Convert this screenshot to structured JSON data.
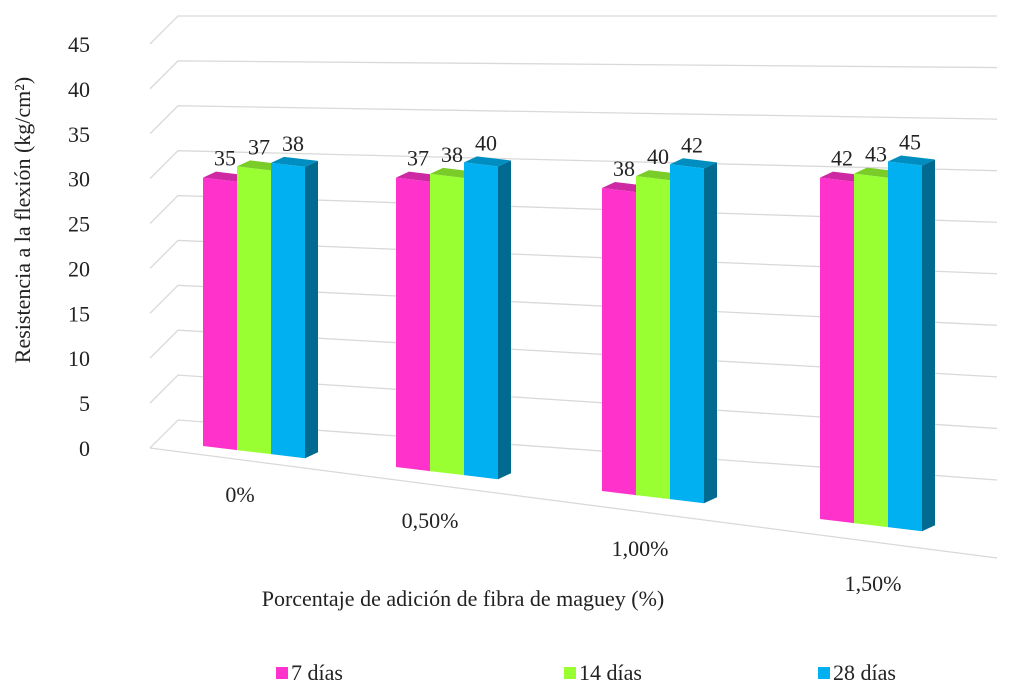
{
  "chart_data": {
    "type": "bar",
    "title": "",
    "xlabel": "Porcentaje de adición de fibra de maguey (%)",
    "ylabel": "Resistencia a la flexión (kg/cm²)",
    "ylim": [
      0,
      45
    ],
    "yticks": [
      0,
      5,
      10,
      15,
      20,
      25,
      30,
      35,
      40,
      45
    ],
    "grid": true,
    "legend_position": "bottom",
    "categories": [
      "0%",
      "0,50%",
      "1,00%",
      "1,50%"
    ],
    "series": [
      {
        "name": "7 días",
        "values": [
          35,
          37,
          38,
          42
        ],
        "color": "#ff33cc"
      },
      {
        "name": "14 días",
        "values": [
          37,
          38,
          40,
          43
        ],
        "color": "#99ff33"
      },
      {
        "name": "28 días",
        "values": [
          38,
          40,
          42,
          45
        ],
        "color": "#00b0f0"
      }
    ]
  }
}
